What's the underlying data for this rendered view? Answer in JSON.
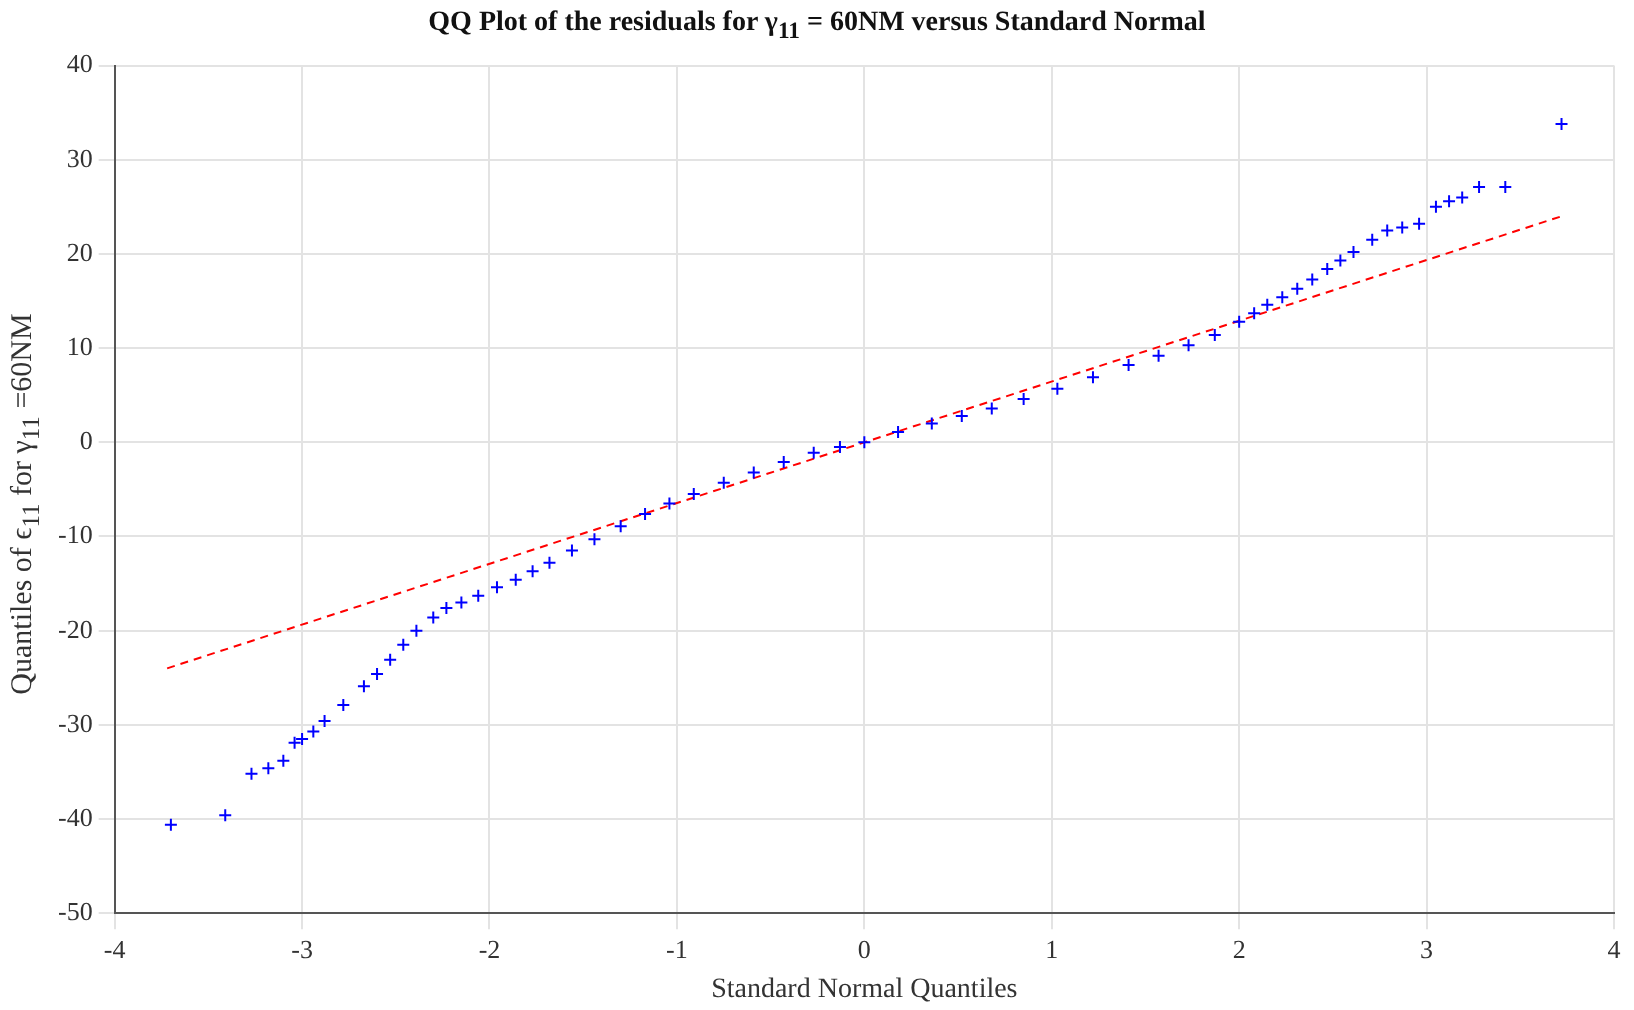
{
  "chart_data": {
    "type": "scatter",
    "title": "QQ Plot of the residuals for γ$_{11}$ = 60NM versus Standard Normal",
    "xlabel": "Standard Normal Quantiles",
    "ylabel": "Quantiles of ϵ$_{11}$ for γ$_{11}$ =60NM",
    "xlim": [
      -4,
      4
    ],
    "xticks": [
      -4,
      -3,
      -2,
      -1,
      0,
      1,
      2,
      3,
      4
    ],
    "ylim": [
      -50,
      40
    ],
    "yticks": [
      -50,
      -40,
      -30,
      -20,
      -10,
      0,
      10,
      20,
      30,
      40
    ],
    "grid": true,
    "legend": false,
    "series": [
      {
        "type": "scatter",
        "color": "#0000ff",
        "marker": "cross",
        "x": [
          -3.7,
          -3.41,
          -3.27,
          -3.18,
          -3.1,
          -3.04,
          -3.0,
          -2.94,
          -2.88,
          -2.78,
          -2.67,
          -2.6,
          -2.53,
          -2.46,
          -2.39,
          -2.3,
          -2.23,
          -2.15,
          -2.06,
          -1.96,
          -1.86,
          -1.77,
          -1.68,
          -1.56,
          -1.44,
          -1.3,
          -1.17,
          -1.04,
          -0.91,
          -0.75,
          -0.59,
          -0.43,
          -0.27,
          -0.13,
          0,
          0.18,
          0.36,
          0.52,
          0.68,
          0.85,
          1.03,
          1.22,
          1.41,
          1.57,
          1.73,
          1.87,
          2.0,
          2.08,
          2.15,
          2.23,
          2.31,
          2.39,
          2.47,
          2.54,
          2.61,
          2.71,
          2.79,
          2.87,
          2.96,
          3.05,
          3.12,
          3.19,
          3.28,
          3.42,
          3.72
        ],
        "values": [
          -40.6,
          -39.6,
          -35.2,
          -34.6,
          -33.8,
          -31.9,
          -31.5,
          -30.7,
          -29.6,
          -27.9,
          -25.9,
          -24.6,
          -23.1,
          -21.5,
          -20,
          -18.6,
          -17.6,
          -17,
          -16.3,
          -15.4,
          -14.6,
          -13.7,
          -12.8,
          -11.5,
          -10.3,
          -8.9,
          -7.6,
          -6.5,
          -5.5,
          -4.3,
          -3.2,
          -2.1,
          -1.1,
          -0.5,
          0,
          1.1,
          2,
          2.8,
          3.6,
          4.6,
          5.7,
          6.9,
          8.2,
          9.2,
          10.3,
          11.4,
          12.8,
          13.7,
          14.6,
          15.4,
          16.3,
          17.3,
          18.4,
          19.3,
          20.2,
          21.5,
          22.5,
          22.8,
          23.2,
          25,
          25.6,
          26,
          27.1,
          27.1,
          33.8
        ]
      },
      {
        "type": "line",
        "color": "#ff0000",
        "line_style": "dashed",
        "marker": "none",
        "x": [
          -3.72,
          3.72
        ],
        "values": [
          -24,
          24
        ]
      }
    ]
  }
}
